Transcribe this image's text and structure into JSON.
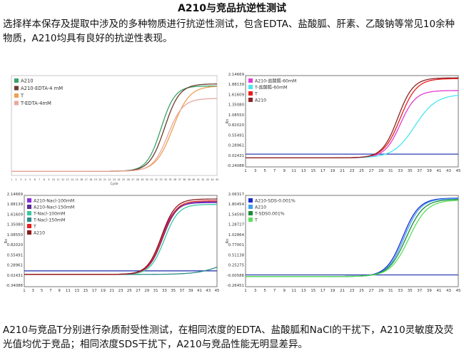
{
  "title": "A210与竞品抗逆性测试",
  "intro": "选择样本保存及提取中涉及的多种物质进行抗逆性测试，包含EDTA、盐酸胍、肝素、乙酸钠等常见10余种物质，A210均具有良好的抗逆性表现。",
  "summary": "A210与竞品T分别进行杂质耐受性测试，在相同浓度的EDTA、盐酸胍和NaCl的干扰下，A210灵敏度及荧光值均优于竞品；相同浓度SDS干扰下，A210与竞品性能无明显差异。",
  "chart_data": [
    {
      "type": "line",
      "panel": "EDTA",
      "xlabel": "Cycle",
      "ylabel": "",
      "x_ticks": [
        1,
        2,
        3,
        4,
        5,
        6,
        7,
        8,
        9,
        10,
        11,
        12,
        13,
        14,
        15,
        16,
        17,
        18,
        19,
        20,
        21,
        22,
        23,
        24,
        25,
        26,
        27,
        28,
        29,
        30,
        31,
        32,
        33,
        34,
        35,
        36,
        37,
        38,
        39,
        40,
        41,
        42,
        43,
        44,
        45
      ],
      "y_ticks": [],
      "xlim": [
        1,
        45
      ],
      "ylim": [
        -0.1,
        2.3
      ],
      "legend_position": "top-left",
      "threshold": null,
      "series": [
        {
          "name": "A210",
          "color": "#3aa36a",
          "plateau": 2.05,
          "midpoint": 33.0,
          "slope": 1.5
        },
        {
          "name": "A210-EDTA-4 mM",
          "color": "#6b3d2e",
          "plateau": 2.1,
          "midpoint": 33.8,
          "slope": 1.6
        },
        {
          "name": "T",
          "color": "#f0a050",
          "plateau": 2.05,
          "midpoint": 35.5,
          "slope": 1.8
        },
        {
          "name": "T-EDTA-4mM",
          "color": "#e6a8a0",
          "plateau": 1.75,
          "midpoint": 34.5,
          "slope": 1.6
        }
      ]
    },
    {
      "type": "line",
      "panel": "GuHCl",
      "xlabel": "",
      "ylabel": "Rn",
      "x_ticks": [
        1,
        3,
        5,
        7,
        9,
        11,
        13,
        15,
        17,
        19,
        21,
        23,
        25,
        27,
        29,
        31,
        33,
        35,
        37,
        39,
        41,
        43,
        45
      ],
      "y_ticks": [
        "-0.24088",
        "0.02431",
        "0.28961",
        "0.55491",
        "0.82020",
        "1.08550",
        "1.35080",
        "1.61609",
        "1.88139",
        "2.14669"
      ],
      "xlim": [
        1,
        45
      ],
      "ylim": [
        -0.24088,
        2.2
      ],
      "legend_position": "top-left",
      "threshold": 0.1,
      "threshold_color": "#2c3fb0",
      "series": [
        {
          "name": "A210-盐酸胍-60mM",
          "color": "#e23bd0",
          "plateau": 1.8,
          "midpoint": 33.0,
          "slope": 1.6
        },
        {
          "name": "T-盐酸胍-60mM",
          "color": "#48e8f0",
          "plateau": 1.7,
          "midpoint": 36.0,
          "slope": 2.2
        },
        {
          "name": "T",
          "color": "#e81e1e",
          "plateau": 2.12,
          "midpoint": 33.0,
          "slope": 1.7
        },
        {
          "name": "A210",
          "color": "#8c2424",
          "plateau": 2.14,
          "midpoint": 32.5,
          "slope": 1.6
        }
      ]
    },
    {
      "type": "line",
      "panel": "NaCl",
      "xlabel": "",
      "ylabel": "Rn",
      "x_ticks": [
        1,
        3,
        5,
        7,
        9,
        11,
        13,
        15,
        17,
        19,
        21,
        23,
        25,
        27,
        29,
        31,
        33,
        35,
        37,
        39,
        41,
        43,
        45
      ],
      "y_ticks": [
        "-0.34088",
        "0.02431",
        "0.28961",
        "0.55491",
        "0.82020",
        "1.08550",
        "1.35080",
        "1.61609",
        "1.88139",
        "2.14669"
      ],
      "xlim": [
        1,
        45
      ],
      "ylim": [
        -0.34088,
        2.2
      ],
      "legend_position": "top-left",
      "threshold": 0.1,
      "threshold_color": "#2c3fb0",
      "series": [
        {
          "name": "A210-Nacl-100mM",
          "color": "#8a2be2",
          "plateau": 2.0,
          "midpoint": 32.2,
          "slope": 1.6
        },
        {
          "name": "A210-Nacl-150mM",
          "color": "#5a2a9a",
          "plateau": 2.02,
          "midpoint": 32.6,
          "slope": 1.6
        },
        {
          "name": "T-Nacl-100mM",
          "color": "#38c8a0",
          "plateau": 1.95,
          "midpoint": 33.0,
          "slope": 1.6
        },
        {
          "name": "T-Nacl-150mM",
          "color": "#2a8a8a",
          "plateau": 0.6,
          "midpoint": 47.0,
          "slope": 3.0
        },
        {
          "name": "T",
          "color": "#e81e1e",
          "plateau": 2.05,
          "midpoint": 32.5,
          "slope": 1.6
        },
        {
          "name": "A210",
          "color": "#8c1818",
          "plateau": 2.1,
          "midpoint": 32.3,
          "slope": 1.6
        }
      ]
    },
    {
      "type": "line",
      "panel": "SDS",
      "xlabel": "",
      "ylabel": "Rn",
      "x_ticks": [
        1,
        3,
        5,
        7,
        9,
        11,
        13,
        15,
        17,
        19,
        21,
        23,
        25,
        27,
        29,
        31,
        33,
        35,
        37,
        39,
        41,
        43,
        45
      ],
      "y_ticks": [
        "-0.26451",
        "-0.00588",
        "0.25275",
        "0.51138",
        "0.77001",
        "1.02864",
        "1.28727",
        "1.54590",
        "1.80454",
        "2.06317"
      ],
      "xlim": [
        1,
        45
      ],
      "ylim": [
        -0.26451,
        2.1
      ],
      "legend_position": "top-left",
      "threshold": 0.04,
      "threshold_color": "#2c3fb0",
      "series": [
        {
          "name": "A210-SDS-0.001%",
          "color": "#1a2ad0",
          "plateau": 2.03,
          "midpoint": 33.5,
          "slope": 1.7
        },
        {
          "name": "A210",
          "color": "#40a0f0",
          "plateau": 2.02,
          "midpoint": 33.8,
          "slope": 1.7
        },
        {
          "name": "T-SDS0.001%",
          "color": "#1a8a3a",
          "plateau": 2.0,
          "midpoint": 34.2,
          "slope": 1.8
        },
        {
          "name": "T",
          "color": "#5ae05a",
          "plateau": 1.98,
          "midpoint": 34.8,
          "slope": 1.9
        }
      ]
    }
  ]
}
